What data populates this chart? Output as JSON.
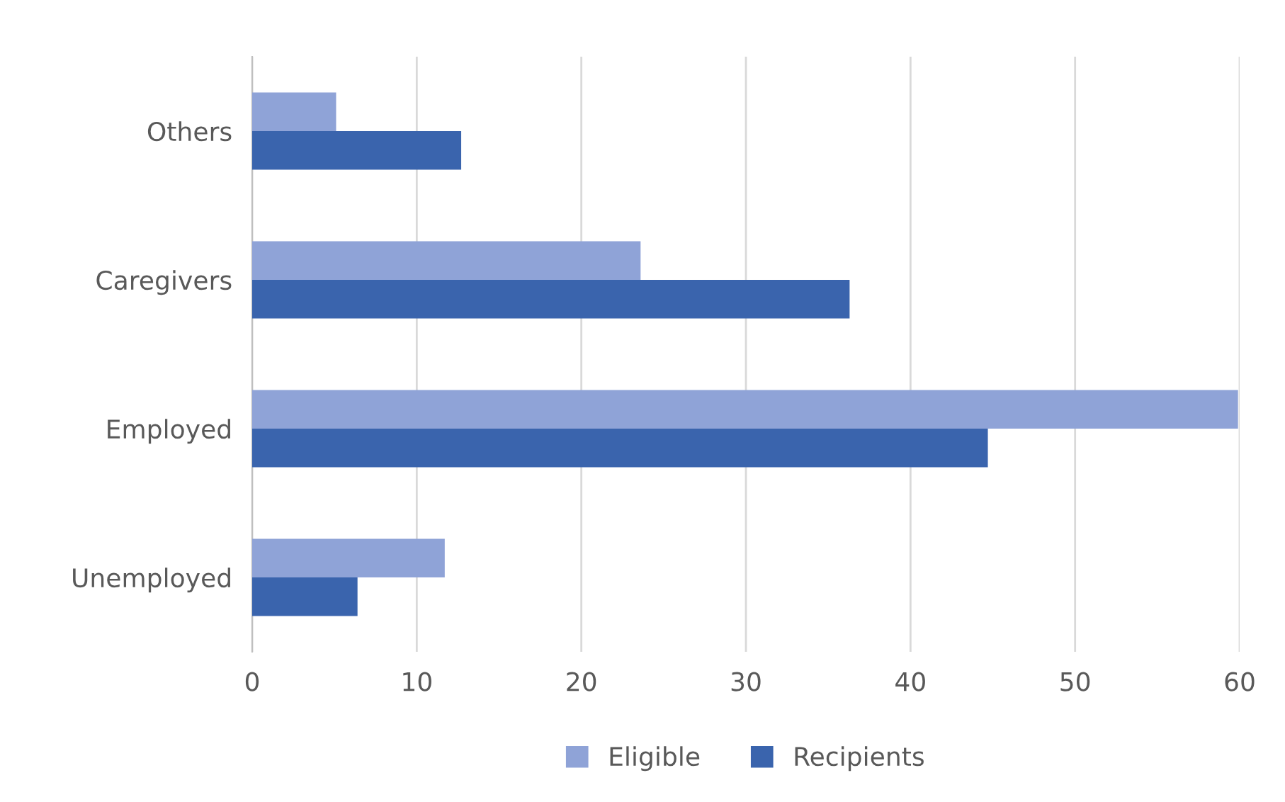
{
  "chart_data": {
    "type": "bar",
    "orientation": "horizontal",
    "categories": [
      "Others",
      "Caregivers",
      "Employed",
      "Unemployed"
    ],
    "series": [
      {
        "name": "Eligible",
        "color": "#8fa3d7",
        "values": [
          5.1,
          23.6,
          59.9,
          11.7
        ]
      },
      {
        "name": "Recipients",
        "color": "#3a64ad",
        "values": [
          12.7,
          36.3,
          44.7,
          6.4
        ]
      }
    ],
    "xlim": [
      0,
      60
    ],
    "xticks": [
      0,
      10,
      20,
      30,
      40,
      50,
      60
    ],
    "grid": "x",
    "legend": "bottom"
  }
}
